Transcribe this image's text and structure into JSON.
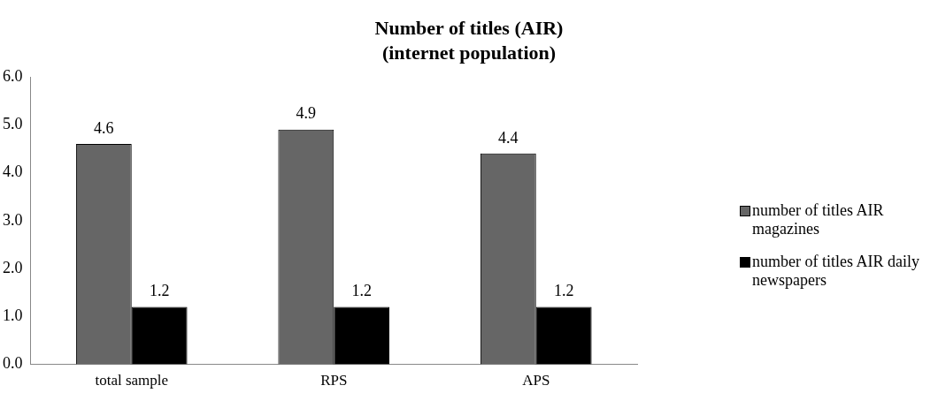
{
  "chart_data": {
    "type": "bar",
    "title": "Number of titles (AIR) (internet population)",
    "categories": [
      "total sample",
      "RPS",
      "APS"
    ],
    "series": [
      {
        "name": "number of titles AIR magazines",
        "color": "#666666",
        "values": [
          4.6,
          4.9,
          4.4
        ]
      },
      {
        "name": "number of titles AIR daily newspapers",
        "color": "#000000",
        "values": [
          1.2,
          1.2,
          1.2
        ]
      }
    ],
    "ylim": [
      0,
      6
    ],
    "yticks": [
      {
        "value": 0,
        "label": "0.0"
      },
      {
        "value": 1,
        "label": "1.0"
      },
      {
        "value": 2,
        "label": "2.0"
      },
      {
        "value": 3,
        "label": "3.0"
      },
      {
        "value": 4,
        "label": "4.0"
      },
      {
        "value": 5,
        "label": "5.0"
      },
      {
        "value": 6,
        "label": "6.0"
      }
    ],
    "grid": false,
    "legend": "right",
    "data_labels": true
  }
}
